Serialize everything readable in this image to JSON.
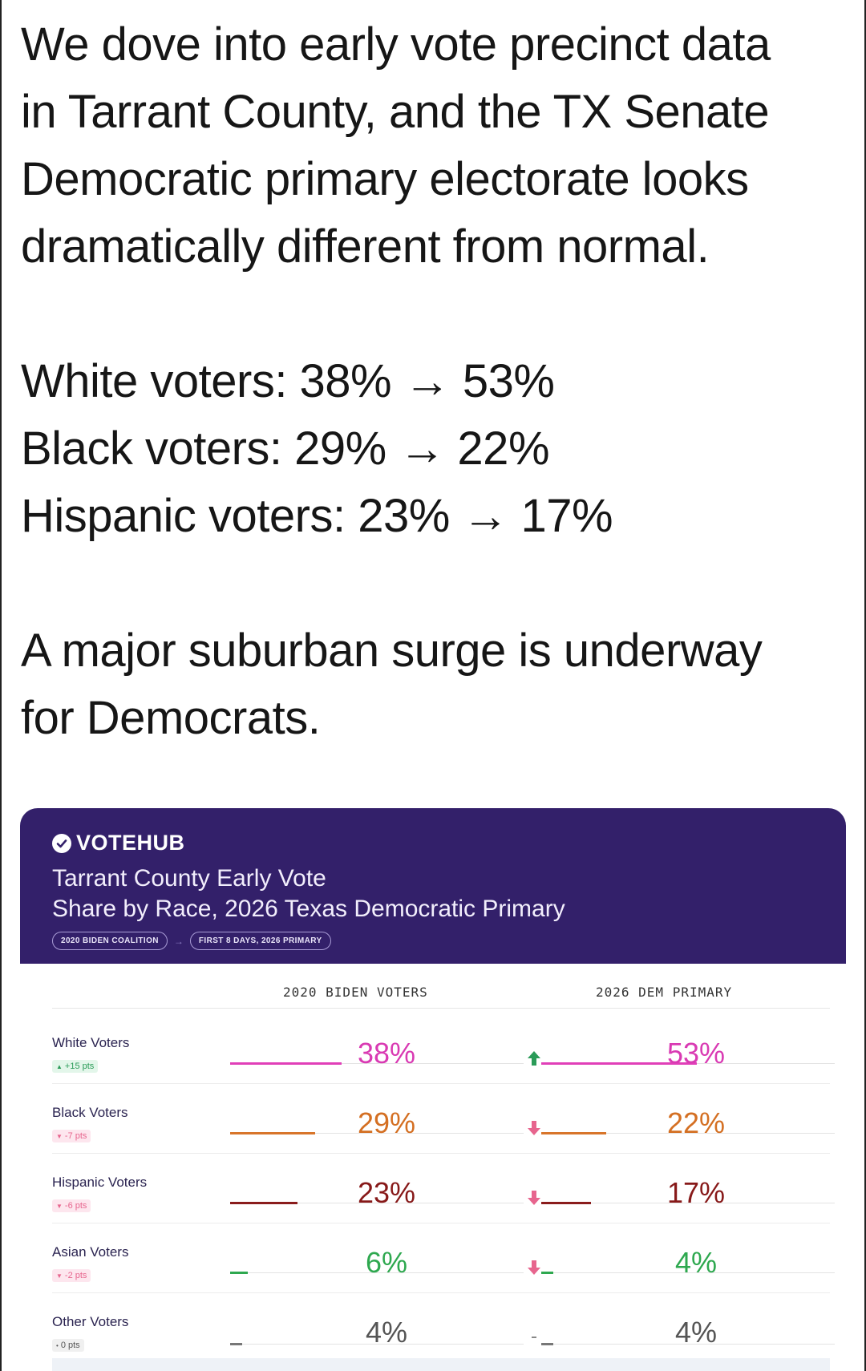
{
  "tweet": {
    "paragraph1": [
      "We dove into early vote precinct data",
      "in Tarrant County, and the TX Senate",
      "Democratic primary electorate looks",
      "dramatically different from normal."
    ],
    "stats": [
      "White voters: 38% → 53%",
      "Black voters: 29% → 22%",
      "Hispanic voters: 23% → 17%"
    ],
    "paragraph3": [
      "A major suburban surge is underway",
      "for Democrats."
    ]
  },
  "card": {
    "brand": "VOTEHUB",
    "title_line1": "Tarrant County Early Vote",
    "title_line2": "Share by Race, 2026 Texas Democratic Primary",
    "pill_left": "2020 BIDEN COALITION",
    "pill_arrow": "→",
    "pill_right": "FIRST 8 DAYS, 2026 PRIMARY",
    "col_left": "2020 BIDEN VOTERS",
    "col_right": "2026 DEM PRIMARY",
    "colors": {
      "header_bg": "#33206a",
      "up": "#2a9b58",
      "down": "#e7658e"
    },
    "rows": [
      {
        "label": "White Voters",
        "badge": "+15 pts",
        "badge_icon": "▲",
        "direction": "up",
        "v2020": "38%",
        "v2026": "53%",
        "s2020": 38,
        "s2026": 53,
        "icon": "🡅",
        "color": "#e03fb8",
        "val_color": "#d93ab3"
      },
      {
        "label": "Black Voters",
        "badge": "-7 pts",
        "badge_icon": "▼",
        "direction": "down",
        "v2020": "29%",
        "v2026": "22%",
        "s2020": 29,
        "s2026": 22,
        "icon": "🡇",
        "color": "#d8752a",
        "val_color": "#d46f22"
      },
      {
        "label": "Hispanic Voters",
        "badge": "-6 pts",
        "badge_icon": "▼",
        "direction": "down",
        "v2020": "23%",
        "v2026": "17%",
        "s2020": 23,
        "s2026": 17,
        "icon": "🡇",
        "color": "#8a1c1c",
        "val_color": "#871919"
      },
      {
        "label": "Asian Voters",
        "badge": "-2 pts",
        "badge_icon": "▼",
        "direction": "down",
        "v2020": "6%",
        "v2026": "4%",
        "s2020": 6,
        "s2026": 4,
        "icon": "🡇",
        "color": "#2ea84f",
        "val_color": "#2ea84f"
      },
      {
        "label": "Other Voters",
        "badge": "0 pts",
        "badge_icon": "•",
        "direction": "flat",
        "v2020": "4%",
        "v2026": "4%",
        "s2020": 4,
        "s2026": 4,
        "icon": "–",
        "color": "#777777",
        "val_color": "#555555"
      }
    ]
  }
}
